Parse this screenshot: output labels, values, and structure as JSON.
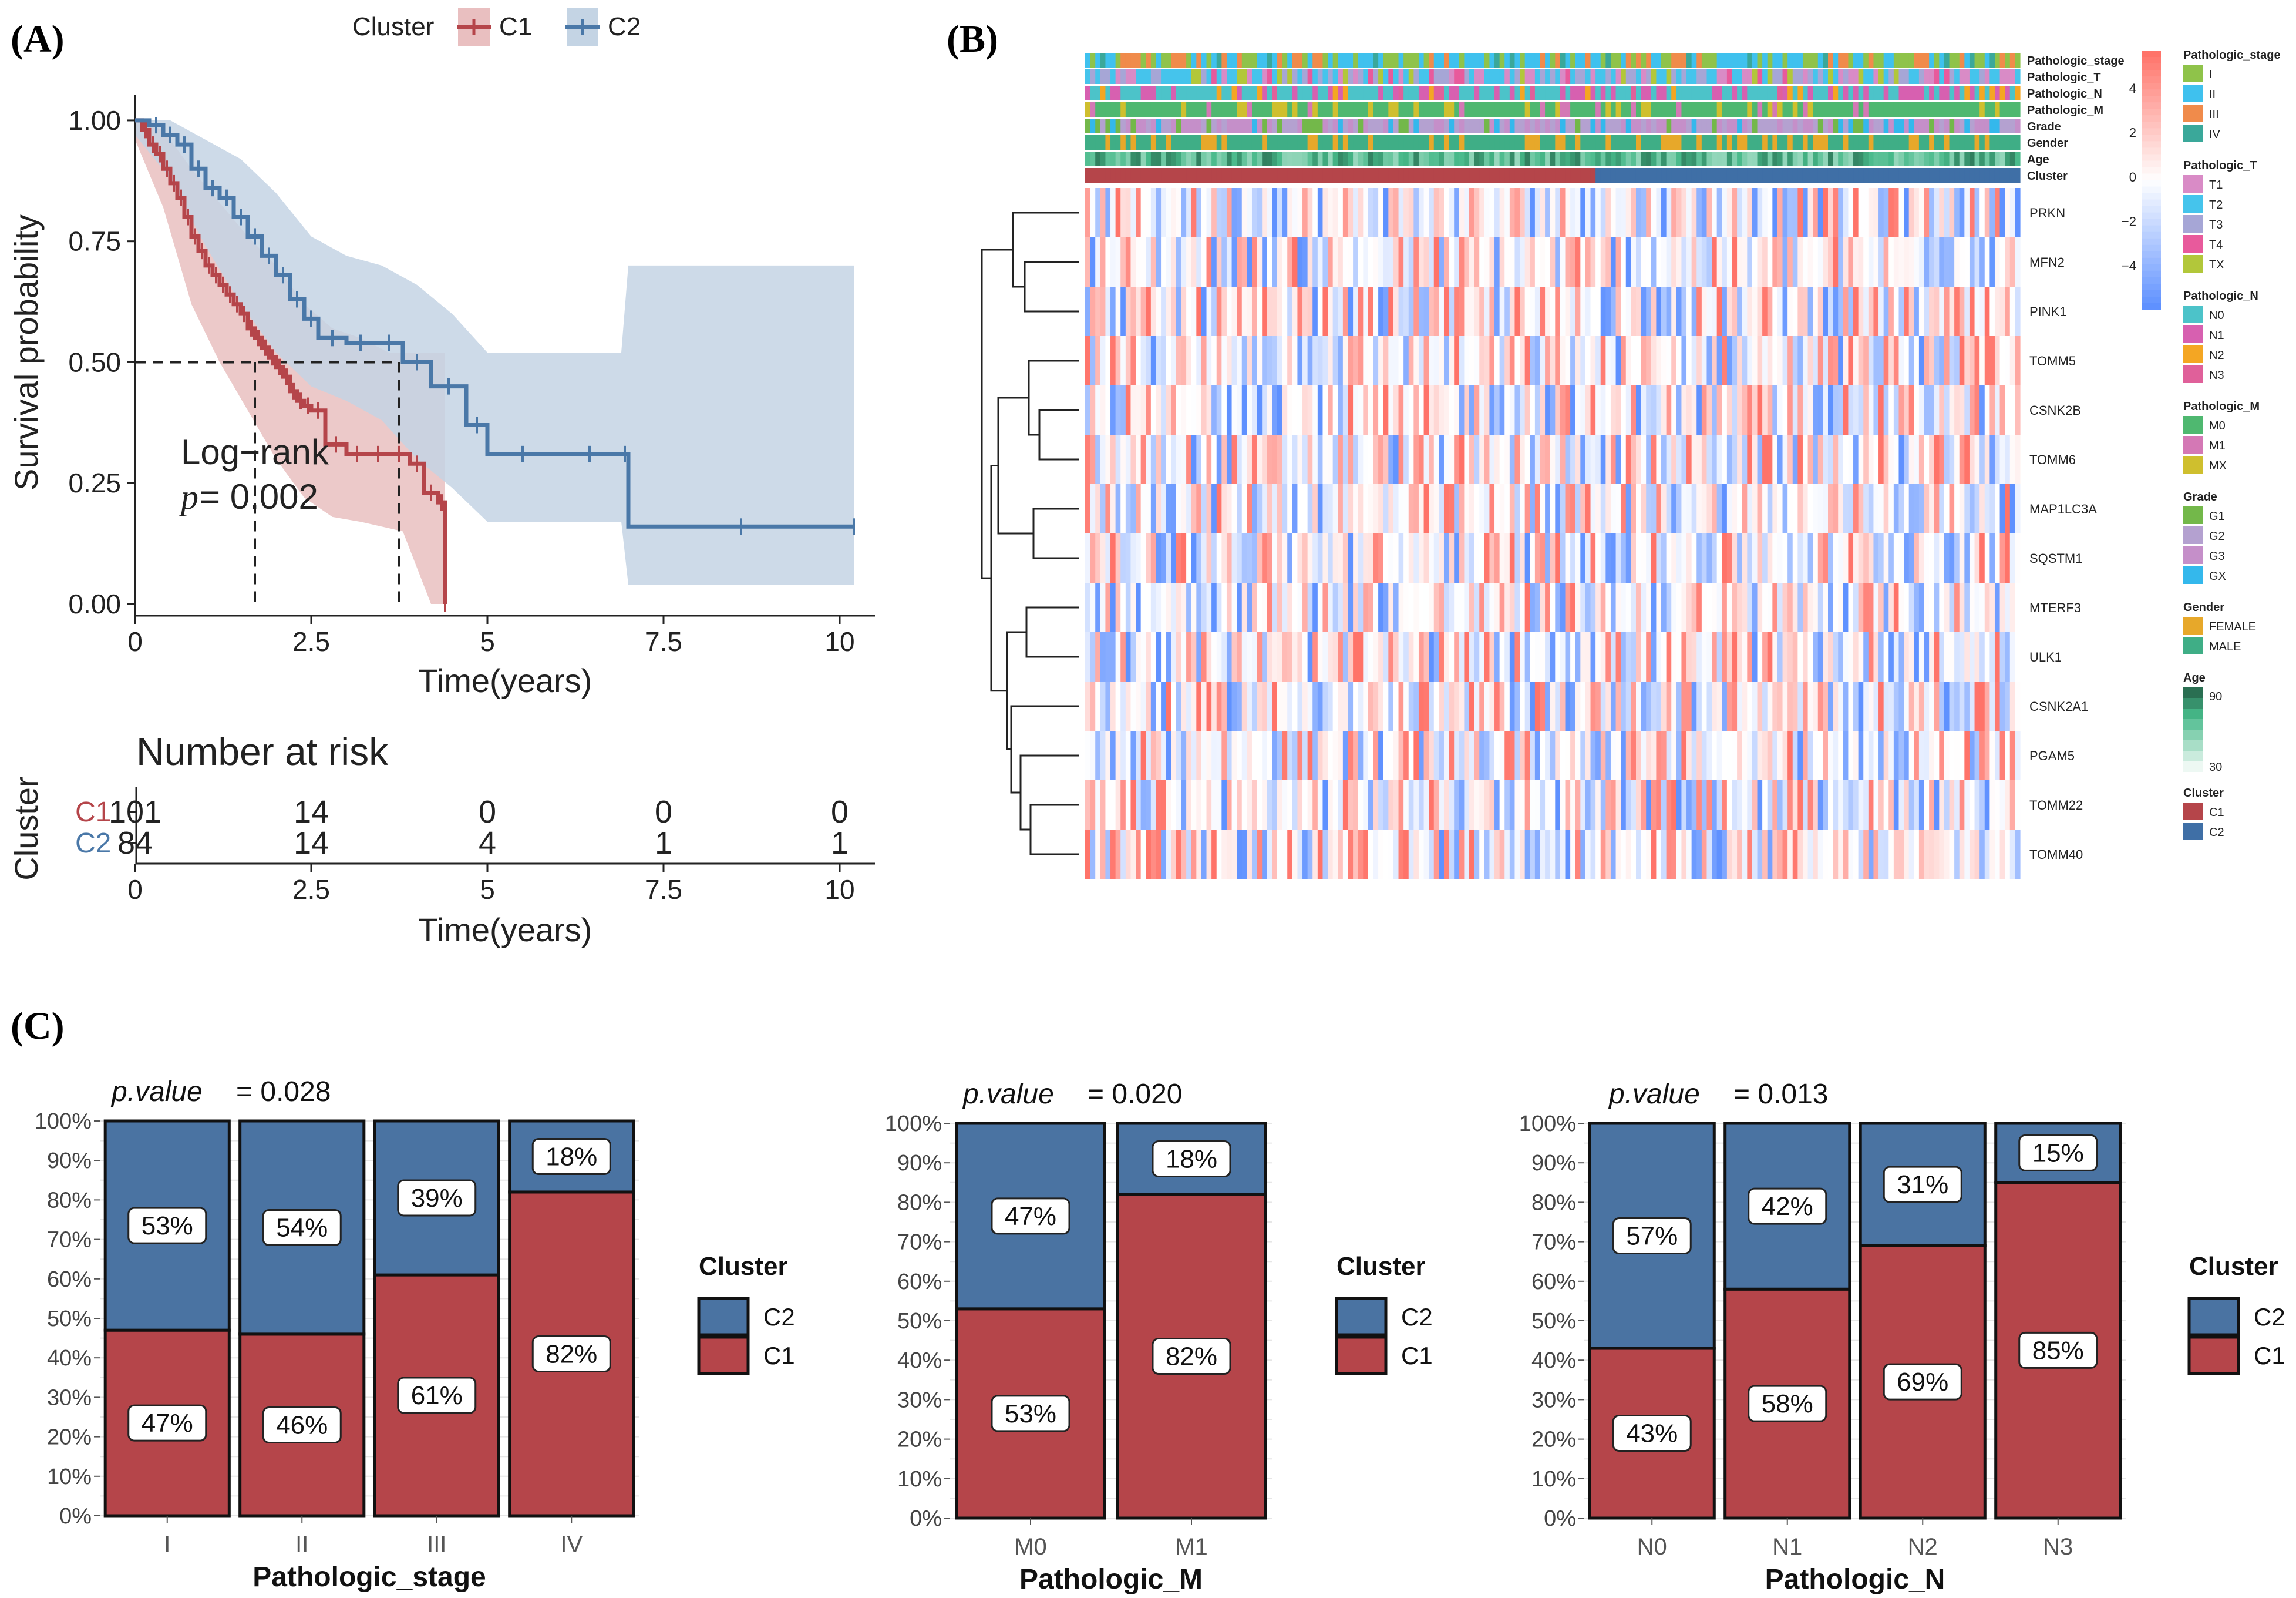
{
  "panel_labels": {
    "a": "(A)",
    "b": "(B)",
    "c": "(C)"
  },
  "colors": {
    "c1": "#b5454a",
    "c2": "#4a78a8",
    "c1_fill": "#e9bfc0",
    "c2_fill": "#c4d4e4"
  },
  "chart_data": [
    {
      "id": "km",
      "type": "line",
      "legend_title": "Cluster",
      "series": [
        {
          "name": "C1",
          "x": [
            0,
            0.1,
            0.2,
            0.3,
            0.4,
            0.5,
            0.6,
            0.7,
            0.8,
            0.9,
            1.0,
            1.1,
            1.2,
            1.3,
            1.4,
            1.5,
            1.6,
            1.7,
            1.8,
            1.9,
            2.0,
            2.1,
            2.2,
            2.3,
            2.4,
            2.5,
            2.7,
            3.0,
            3.3,
            3.6,
            3.9,
            4.1,
            4.3,
            4.4
          ],
          "y": [
            1.0,
            0.98,
            0.95,
            0.93,
            0.9,
            0.87,
            0.84,
            0.8,
            0.76,
            0.73,
            0.7,
            0.68,
            0.66,
            0.64,
            0.62,
            0.6,
            0.57,
            0.55,
            0.53,
            0.51,
            0.49,
            0.47,
            0.44,
            0.42,
            0.41,
            0.4,
            0.33,
            0.31,
            0.31,
            0.31,
            0.29,
            0.23,
            0.21,
            0.0
          ]
        },
        {
          "name": "C2",
          "x": [
            0,
            0.2,
            0.4,
            0.6,
            0.8,
            1.0,
            1.2,
            1.4,
            1.6,
            1.8,
            2.0,
            2.2,
            2.4,
            2.6,
            3.0,
            3.4,
            3.8,
            4.2,
            4.7,
            5.0,
            6.0,
            6.9,
            7.0,
            10.2
          ],
          "y": [
            1.0,
            0.99,
            0.97,
            0.95,
            0.9,
            0.86,
            0.84,
            0.8,
            0.76,
            0.72,
            0.68,
            0.63,
            0.59,
            0.55,
            0.54,
            0.54,
            0.5,
            0.45,
            0.37,
            0.31,
            0.31,
            0.31,
            0.16,
            0.16
          ]
        }
      ],
      "xlabel": "Time(years)",
      "ylabel": "Survival probability",
      "xticks": [
        "0",
        "2.5",
        "5",
        "7.5",
        "10"
      ],
      "yticks": [
        "0.00",
        "0.25",
        "0.50",
        "0.75",
        "1.00"
      ],
      "xlim": [
        0,
        10.5
      ],
      "ylim": [
        0,
        1.04
      ],
      "median_line_y": 0.5,
      "median_times": [
        1.7,
        3.75
      ],
      "annotation_line1": "Log−rank",
      "annotation_p_label": "p",
      "annotation_p_value": " = 0.002",
      "risk_table": {
        "title": "Number at risk",
        "ylabel": "Cluster",
        "xlabel": "Time(years)",
        "rows": [
          {
            "name": "C1",
            "values": [
              "101",
              "14",
              "0",
              "0",
              "0"
            ]
          },
          {
            "name": "C2",
            "values": [
              "84",
              "14",
              "4",
              "1",
              "1"
            ]
          }
        ]
      }
    },
    {
      "id": "heatmap",
      "type": "heatmap",
      "genes": [
        "PRKN",
        "MFN2",
        "PINK1",
        "TOMM5",
        "CSNK2B",
        "TOMM6",
        "MAP1LC3A",
        "SQSTM1",
        "MTERF3",
        "ULK1",
        "CSNK2A1",
        "PGAM5",
        "TOMM22",
        "TOMM40"
      ],
      "annotation_tracks": [
        "Pathologic_stage",
        "Pathologic_T",
        "Pathologic_N",
        "Pathologic_M",
        "Grade",
        "Gender",
        "Age",
        "Cluster"
      ],
      "n_samples": 185,
      "n_c1": 101,
      "colorbar_ticks": [
        "4",
        "2",
        "0",
        "−2",
        "−4"
      ],
      "legends": [
        {
          "title": "Pathologic_stage",
          "items": [
            {
              "label": "I",
              "color": "#8fc34a"
            },
            {
              "label": "II",
              "color": "#3fc1ee"
            },
            {
              "label": "III",
              "color": "#f08b4b"
            },
            {
              "label": "IV",
              "color": "#3aa89a"
            }
          ]
        },
        {
          "title": "Pathologic_T",
          "items": [
            {
              "label": "T1",
              "color": "#d98bc6"
            },
            {
              "label": "T2",
              "color": "#45c4ec"
            },
            {
              "label": "T3",
              "color": "#a6a6d6"
            },
            {
              "label": "T4",
              "color": "#e85a9c"
            },
            {
              "label": "TX",
              "color": "#b2c73a"
            }
          ]
        },
        {
          "title": "Pathologic_N",
          "items": [
            {
              "label": "N0",
              "color": "#4cc3c9"
            },
            {
              "label": "N1",
              "color": "#d760b0"
            },
            {
              "label": "N2",
              "color": "#f4a623"
            },
            {
              "label": "N3",
              "color": "#e0609a"
            }
          ]
        },
        {
          "title": "Pathologic_M",
          "items": [
            {
              "label": "M0",
              "color": "#4fb870"
            },
            {
              "label": "M1",
              "color": "#d478b5"
            },
            {
              "label": "MX",
              "color": "#cfbf2e"
            }
          ]
        },
        {
          "title": "Grade",
          "items": [
            {
              "label": "G1",
              "color": "#73b84a"
            },
            {
              "label": "G2",
              "color": "#b4a1d0"
            },
            {
              "label": "G3",
              "color": "#c58fc9"
            },
            {
              "label": "GX",
              "color": "#34b8ec"
            }
          ]
        },
        {
          "title": "Gender",
          "items": [
            {
              "label": "FEMALE",
              "color": "#e7a82a"
            },
            {
              "label": "MALE",
              "color": "#3fae86"
            }
          ]
        },
        {
          "title": "Age",
          "items": [
            {
              "label": "90",
              "color": "#2a8a5a"
            },
            {
              "label": "30",
              "color": "#eef7f3"
            }
          ]
        },
        {
          "title": "Cluster",
          "items": [
            {
              "label": "C1",
              "color": "#b5454a"
            },
            {
              "label": "C2",
              "color": "#3f6fa6"
            }
          ]
        }
      ]
    },
    {
      "id": "stack_stage",
      "type": "bar",
      "stacked": true,
      "p_label": "p.value",
      "p_value": " = 0.028",
      "xlabel": "Pathologic_stage",
      "categories": [
        "I",
        "II",
        "III",
        "IV"
      ],
      "series": [
        {
          "name": "C1",
          "values": [
            47,
            46,
            61,
            82
          ]
        },
        {
          "name": "C2",
          "values": [
            53,
            54,
            39,
            18
          ]
        }
      ],
      "yticks": [
        "0%",
        "10%",
        "20%",
        "30%",
        "40%",
        "50%",
        "60%",
        "70%",
        "80%",
        "90%",
        "100%"
      ],
      "legend_title": "Cluster"
    },
    {
      "id": "stack_m",
      "type": "bar",
      "stacked": true,
      "p_label": "p.value",
      "p_value": " = 0.020",
      "xlabel": "Pathologic_M",
      "categories": [
        "M0",
        "M1"
      ],
      "series": [
        {
          "name": "C1",
          "values": [
            53,
            82
          ]
        },
        {
          "name": "C2",
          "values": [
            47,
            18
          ]
        }
      ],
      "yticks": [
        "0%",
        "10%",
        "20%",
        "30%",
        "40%",
        "50%",
        "60%",
        "70%",
        "80%",
        "90%",
        "100%"
      ],
      "legend_title": "Cluster"
    },
    {
      "id": "stack_n",
      "type": "bar",
      "stacked": true,
      "p_label": "p.value",
      "p_value": " = 0.013",
      "xlabel": "Pathologic_N",
      "categories": [
        "N0",
        "N1",
        "N2",
        "N3"
      ],
      "series": [
        {
          "name": "C1",
          "values": [
            43,
            58,
            69,
            85
          ]
        },
        {
          "name": "C2",
          "values": [
            57,
            42,
            31,
            15
          ]
        }
      ],
      "yticks": [
        "0%",
        "10%",
        "20%",
        "30%",
        "40%",
        "50%",
        "60%",
        "70%",
        "80%",
        "90%",
        "100%"
      ],
      "legend_title": "Cluster"
    }
  ]
}
